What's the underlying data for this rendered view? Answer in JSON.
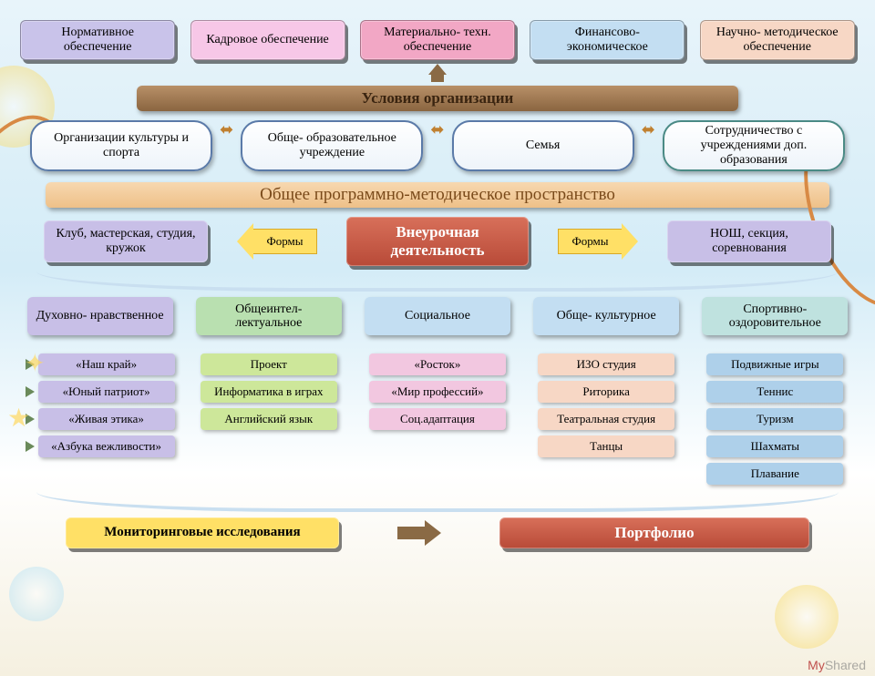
{
  "colors": {
    "purple": "#c9c3ea",
    "purple_b": "#7a6fb5",
    "pink": "#f7c7e7",
    "pink_b": "#d985c2",
    "rose": "#f2a7c5",
    "rose_b": "#c96a91",
    "blue": "#c3def2",
    "blue_b": "#6a9fc8",
    "peach": "#f7d7c5",
    "peach_b": "#cd8f6d",
    "brown": "#a87c55",
    "brown_txt": "#4a3018",
    "lav": "#c8bfe7",
    "teal": "#bfe2df",
    "teal_b": "#4a8a85",
    "orange": "#f2c79a",
    "orange_txt": "#7a4a1a",
    "green_head": "#b9e0b0",
    "lime": "#cde79a",
    "lime_b": "#8ab555",
    "pinkcat": "#f2c7e0",
    "skycat": "#aed0ea",
    "red": "#c95a4a",
    "red_txt": "#5a1a10",
    "yellow": "#ffe066",
    "yellow_b": "#d8a828",
    "dkblue": "#5a7aa8",
    "curve": "#d88a45"
  },
  "top": [
    {
      "label": "Нормативное обеспечение",
      "bg": "purple"
    },
    {
      "label": "Кадровое обеспечение",
      "bg": "pink"
    },
    {
      "label": "Материально- техн. обеспечение",
      "bg": "rose"
    },
    {
      "label": "Финансово- экономическое",
      "bg": "blue"
    },
    {
      "label": "Научно- методическое обеспечение",
      "bg": "peach"
    }
  ],
  "conditions": "Условия организации",
  "pills": [
    {
      "label": "Организации культуры и спорта",
      "border": "dkblue"
    },
    {
      "label": "Обще- образовательное учреждение",
      "border": "dkblue"
    },
    {
      "label": "Семья",
      "border": "dkblue"
    },
    {
      "label": "Сотрудничество с учреждениями доп. образования",
      "border": "teal_b"
    }
  ],
  "space": "Общее  программно-методическое пространство",
  "forms_left": {
    "box": "Клуб, мастерская, студия, кружок",
    "arrow": "Формы"
  },
  "center": "Внеурочная деятельность",
  "forms_right": {
    "arrow": "Формы",
    "box": "НОШ, секция, соревнования"
  },
  "cats": [
    {
      "head": "Духовно- нравственное",
      "bg": "lav",
      "items": [
        {
          "t": "«Наш край»",
          "bg": "lav"
        },
        {
          "t": "«Юный патриот»",
          "bg": "lav"
        },
        {
          "t": "«Живая этика»",
          "bg": "lav"
        },
        {
          "t": "«Азбука вежливости»",
          "bg": "lav"
        }
      ],
      "arrows": true
    },
    {
      "head": "Общеинтел- лектуальное",
      "bg": "green_head",
      "items": [
        {
          "t": "Проект",
          "bg": "lime"
        },
        {
          "t": "Информатика в играх",
          "bg": "lime"
        },
        {
          "t": "Английский язык",
          "bg": "lime"
        }
      ]
    },
    {
      "head": "Социальное",
      "bg": "blue",
      "items": [
        {
          "t": "«Росток»",
          "bg": "pinkcat"
        },
        {
          "t": "«Мир профессий»",
          "bg": "pinkcat"
        },
        {
          "t": "Соц.адаптация",
          "bg": "pinkcat"
        }
      ]
    },
    {
      "head": "Обще- культурное",
      "bg": "blue",
      "items": [
        {
          "t": "ИЗО студия",
          "bg": "peach"
        },
        {
          "t": "Риторика",
          "bg": "peach"
        },
        {
          "t": "Театральная студия",
          "bg": "peach"
        },
        {
          "t": "Танцы",
          "bg": "peach"
        }
      ]
    },
    {
      "head": "Спортивно- оздоровительное",
      "bg": "teal",
      "items": [
        {
          "t": "Подвижные игры",
          "bg": "skycat"
        },
        {
          "t": "Теннис",
          "bg": "skycat"
        },
        {
          "t": "Туризм",
          "bg": "skycat"
        },
        {
          "t": "Шахматы",
          "bg": "skycat"
        },
        {
          "t": "Плавание",
          "bg": "skycat"
        }
      ]
    }
  ],
  "monitoring": "Мониторинговые исследования",
  "portfolio": "Портфолио",
  "watermark": "MyShared"
}
